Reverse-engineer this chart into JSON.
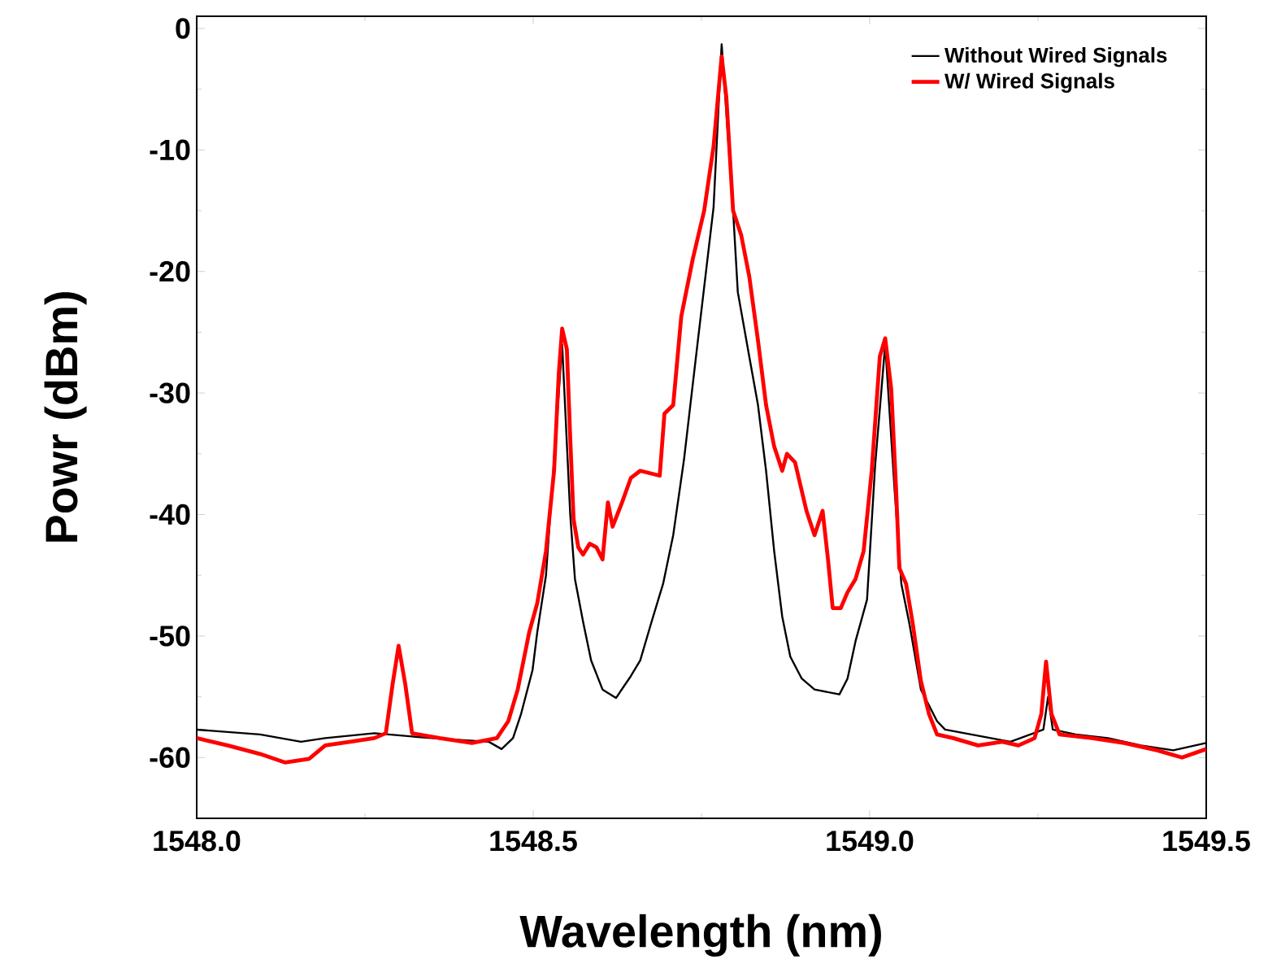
{
  "chart_data": {
    "type": "line",
    "xlabel": "Wavelength (nm)",
    "ylabel": "Powr (dBm)",
    "xlim": [
      1548.0,
      1549.5
    ],
    "ylim": [
      -65,
      1
    ],
    "xticks": [
      {
        "value": 1548.0,
        "label": "1548.0"
      },
      {
        "value": 1548.5,
        "label": "1548.5"
      },
      {
        "value": 1549.0,
        "label": "1549.0"
      },
      {
        "value": 1549.5,
        "label": "1549.5"
      }
    ],
    "yticks": [
      -60,
      -50,
      -40,
      -30,
      -20,
      -10,
      0
    ],
    "grid": false,
    "legend": "top right",
    "marker": "none",
    "line_style": "solid",
    "series": [
      {
        "name": "Without Wired Signals",
        "color": "#000000",
        "x": [
          1548.0,
          1548.094,
          1548.155,
          1548.191,
          1548.264,
          1548.349,
          1548.434,
          1548.453,
          1548.47,
          1548.482,
          1548.499,
          1548.506,
          1548.519,
          1548.531,
          1548.543,
          1548.555,
          1548.562,
          1548.574,
          1548.586,
          1548.603,
          1548.623,
          1548.645,
          1548.659,
          1548.676,
          1548.693,
          1548.708,
          1548.724,
          1548.744,
          1548.768,
          1548.78,
          1548.797,
          1548.804,
          1548.821,
          1548.834,
          1548.846,
          1548.858,
          1548.87,
          1548.882,
          1548.899,
          1548.918,
          1548.955,
          1548.967,
          1548.979,
          1548.996,
          1549.008,
          1549.023,
          1549.037,
          1549.047,
          1549.059,
          1549.076,
          1549.1,
          1549.112,
          1549.161,
          1549.209,
          1549.258,
          1549.265,
          1549.272,
          1549.306,
          1549.354,
          1549.403,
          1549.451,
          1549.5
        ],
        "values": [
          -57.7,
          -58.1,
          -58.7,
          -58.4,
          -58.0,
          -58.4,
          -58.7,
          -59.3,
          -58.4,
          -56.4,
          -52.8,
          -49.7,
          -45.0,
          null,
          -26,
          -40.0,
          -45.3,
          -48.8,
          -52.0,
          -54.4,
          -55.1,
          -53.3,
          -52.0,
          -48.8,
          -45.7,
          -41.7,
          -35.5,
          -26.0,
          -14.7,
          -1.3,
          -15.0,
          -21.7,
          -27.0,
          -31.0,
          -36.4,
          -43.0,
          -48.4,
          -51.7,
          -53.5,
          -54.4,
          -54.8,
          -53.5,
          -50.4,
          -47,
          -36,
          -26,
          -38,
          -45.7,
          -49.0,
          -54.4,
          -57.0,
          -57.7,
          null,
          -58.7,
          -57.7,
          -55,
          -57.7,
          -58.1,
          -58.4,
          -59.0,
          -59.4,
          -58.8
        ]
      },
      {
        "name": "W/ Wired Signals",
        "color": "#ff0000",
        "x": [
          1548.0,
          1548.046,
          1548.094,
          1548.131,
          1548.167,
          1548.191,
          1548.228,
          1548.264,
          1548.281,
          1548.291,
          1548.3,
          1548.31,
          1548.32,
          1548.361,
          1548.409,
          1548.446,
          1548.463,
          1548.477,
          1548.494,
          1548.506,
          1548.519,
          1548.531,
          1548.538,
          1548.543,
          1548.55,
          1548.555,
          1548.56,
          1548.567,
          1548.574,
          1548.584,
          1548.594,
          1548.603,
          1548.611,
          1548.618,
          1548.632,
          1548.645,
          1548.659,
          1548.688,
          1548.695,
          1548.708,
          1548.72,
          1548.737,
          1548.754,
          1548.768,
          1548.78,
          1548.787,
          1548.797,
          1548.809,
          1548.821,
          1548.834,
          1548.846,
          1548.858,
          1548.87,
          1548.877,
          1548.889,
          1548.906,
          1548.918,
          1548.93,
          1548.938,
          1548.945,
          1548.957,
          1548.967,
          1548.979,
          1548.991,
          1549.003,
          1549.015,
          1549.023,
          1549.032,
          1549.039,
          1549.044,
          1549.054,
          1549.064,
          1549.076,
          1549.088,
          1549.1,
          1549.124,
          1549.161,
          1549.197,
          1549.221,
          1549.245,
          1549.255,
          1549.262,
          1549.27,
          1549.282,
          1549.33,
          1549.378,
          1549.427,
          1549.464,
          1549.5
        ],
        "values": [
          -58.4,
          -59.0,
          -59.7,
          -60.4,
          -60.1,
          -59.0,
          -58.7,
          -58.4,
          -58.0,
          -54,
          -50.8,
          -54,
          -58.0,
          -58.4,
          -58.8,
          -58.4,
          -57.0,
          -54.4,
          -49.7,
          -47.3,
          -43.0,
          -36.4,
          -28.4,
          -24.7,
          -26.4,
          -33.7,
          -40.4,
          -42.7,
          -43.3,
          -42.4,
          -42.7,
          -43.7,
          -39.0,
          -41.0,
          -39.0,
          -37.0,
          -36.4,
          -36.8,
          -31.7,
          -31.0,
          -23.7,
          -19.0,
          -15.0,
          -9.7,
          -2.3,
          -5.7,
          -15.0,
          -17.0,
          -20.4,
          -25.7,
          -31.0,
          -34.4,
          -36.4,
          -35.0,
          -35.7,
          -39.7,
          -41.7,
          -39.7,
          -43.7,
          -47.7,
          -47.7,
          -46.4,
          -45.3,
          -43.0,
          -36.4,
          -27.0,
          -25.5,
          -29.7,
          -37.7,
          -44.4,
          -45.7,
          -49.0,
          -53.7,
          -56.4,
          -58.1,
          -58.4,
          -59.0,
          -58.7,
          -59.0,
          -58.4,
          -56.4,
          -52.1,
          -56.4,
          -58.1,
          -58.4,
          -58.8,
          -59.4,
          -60.0,
          -59.3
        ]
      }
    ]
  }
}
